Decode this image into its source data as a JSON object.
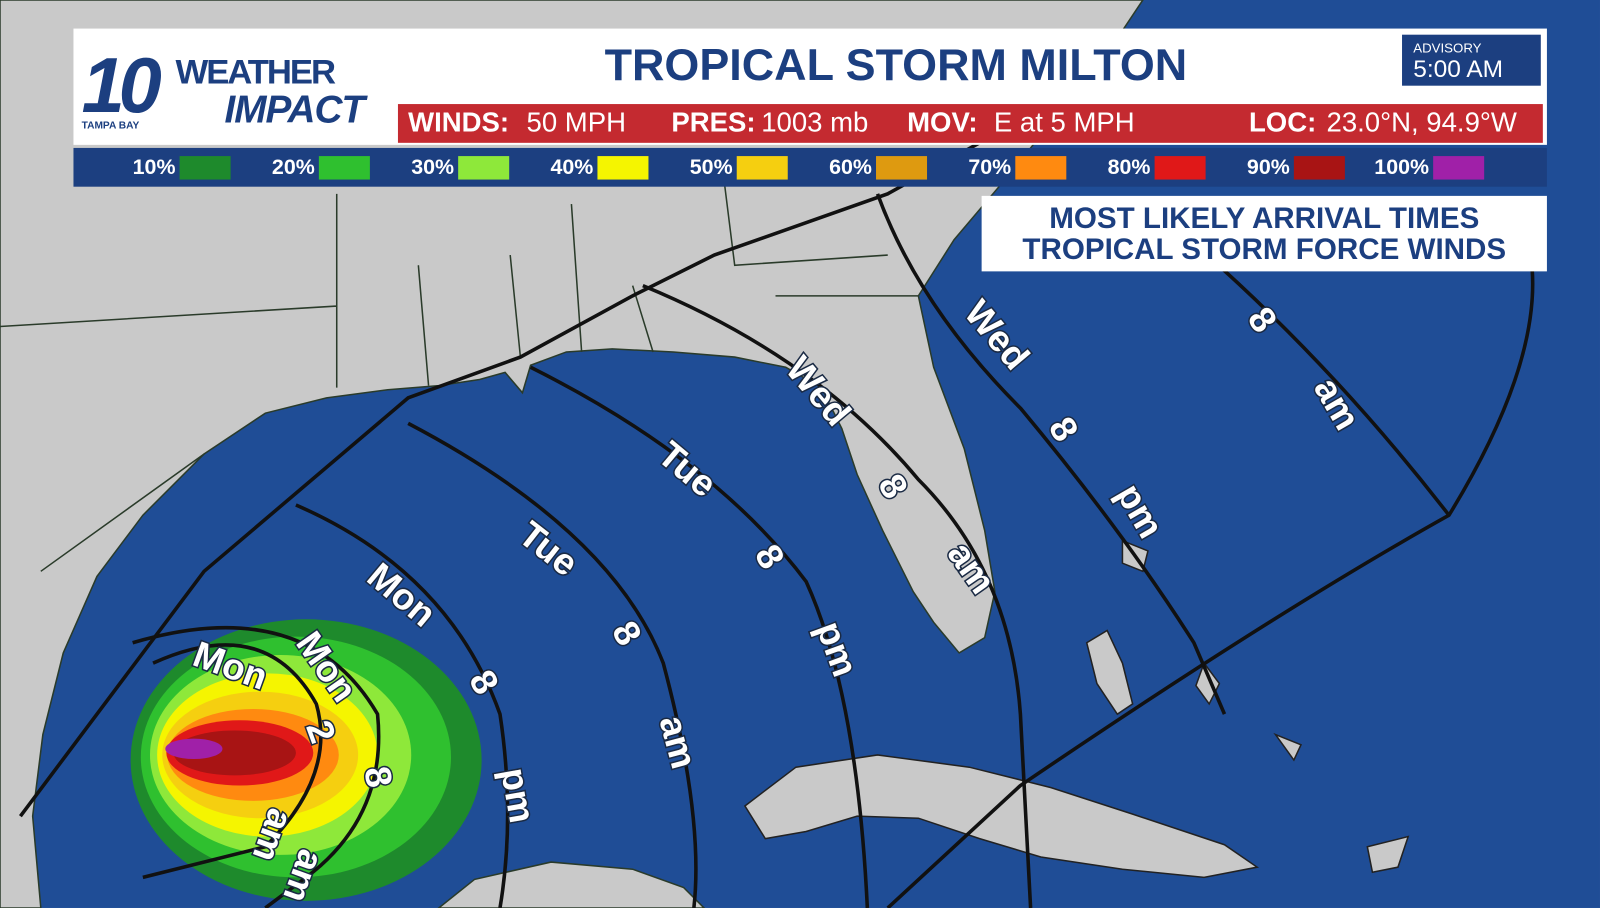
{
  "header": {
    "logo": {
      "number": "10",
      "word1": "WEATHER",
      "word2": "IMPACT",
      "station": "TAMPA BAY"
    },
    "title": "TROPICAL STORM MILTON",
    "advisory": {
      "label": "ADVISORY",
      "time": "5:00 AM"
    }
  },
  "stats": [
    {
      "label": "WINDS:",
      "value": "50 MPH"
    },
    {
      "label": "PRES:",
      "value": "1003 mb"
    },
    {
      "label": "MOV:",
      "value": "E at 5 MPH"
    },
    {
      "label": "LOC:",
      "value": "23.0°N, 94.9°W"
    }
  ],
  "legend": [
    {
      "label": "10%",
      "color": "#1e8a2c"
    },
    {
      "label": "20%",
      "color": "#2fc02f"
    },
    {
      "label": "30%",
      "color": "#8ee83a"
    },
    {
      "label": "40%",
      "color": "#f5f500"
    },
    {
      "label": "50%",
      "color": "#f5cf10"
    },
    {
      "label": "60%",
      "color": "#de9a10"
    },
    {
      "label": "70%",
      "color": "#ff8a10"
    },
    {
      "label": "80%",
      "color": "#e01818"
    },
    {
      "label": "90%",
      "color": "#a81414"
    },
    {
      "label": "100%",
      "color": "#a020a8"
    }
  ],
  "subtitle": [
    "MOST LIKELY ARRIVAL TIMES",
    "TROPICAL STORM FORCE WINDS"
  ],
  "contours": [
    {
      "day": "Mon",
      "hour": "2",
      "period": "am"
    },
    {
      "day": "Mon",
      "hour": "8",
      "period": "am"
    },
    {
      "day": "Mon",
      "hour": "8",
      "period": "pm"
    },
    {
      "day": "Tue",
      "hour": "8",
      "period": "am"
    },
    {
      "day": "Tue",
      "hour": "8",
      "period": "pm"
    },
    {
      "day": "Wed",
      "hour": "8",
      "period": "am"
    },
    {
      "day": "Wed",
      "hour": "8",
      "period": "pm"
    },
    {
      "hour": "8",
      "period": "am"
    }
  ]
}
